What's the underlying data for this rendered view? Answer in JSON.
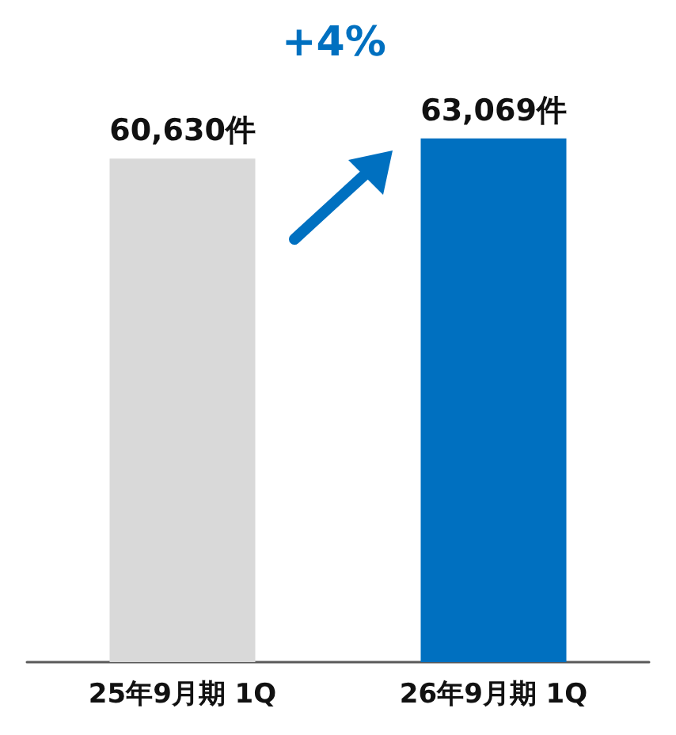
{
  "chart_data": {
    "type": "bar",
    "categories": [
      "25年9月期 1Q",
      "26年9月期 1Q"
    ],
    "values": [
      60630,
      63069
    ],
    "colors": [
      "#d9d9d9",
      "#0070c0"
    ],
    "value_labels": [
      "60,630件",
      "63,069件"
    ],
    "tick_labels": "x",
    "grid": false,
    "annotations": [
      "+4%"
    ]
  }
}
